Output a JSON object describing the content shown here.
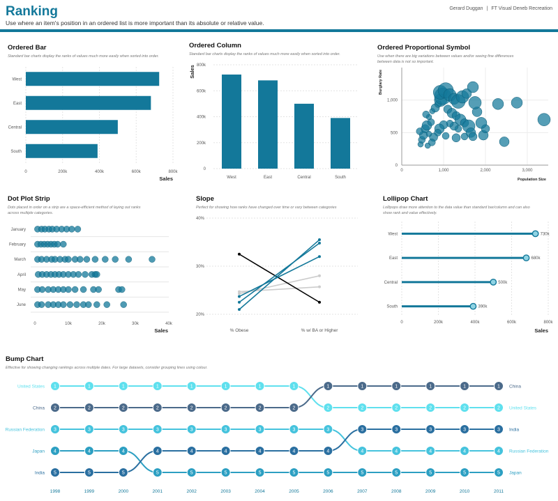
{
  "header": {
    "title": "Ranking",
    "subtitle": "Use where an item's position in an ordered list is more important than its absolute or relative value.",
    "author": "Gerard Duggan",
    "separator": "|",
    "credit": "FT Visual Deneb Recreation"
  },
  "colors": {
    "primary": "#13789a",
    "dark": "#4b6a8a",
    "light": "#5fe0ee",
    "grey": "#cccccc",
    "black": "#000000"
  },
  "chart_data": [
    {
      "id": "ordered-bar",
      "type": "bar",
      "orientation": "horizontal",
      "title": "Ordered Bar",
      "subtitle": "Standard bar charts display the ranks of values much more easily when sorted into order.",
      "categories": [
        "West",
        "East",
        "Central",
        "South"
      ],
      "values": [
        725000,
        680000,
        500000,
        390000
      ],
      "xlabel": "Sales",
      "xlim": [
        0,
        800000
      ],
      "ticks": [
        0,
        200000,
        400000,
        600000,
        800000
      ],
      "tick_labels": [
        "0",
        "200k",
        "400k",
        "600k",
        "800k"
      ]
    },
    {
      "id": "ordered-column",
      "type": "bar",
      "orientation": "vertical",
      "title": "Ordered Column",
      "subtitle": "Standard bar charts display the ranks of values much more easily when sorted into order.",
      "categories": [
        "West",
        "East",
        "Central",
        "South"
      ],
      "values": [
        725000,
        680000,
        500000,
        390000
      ],
      "ylabel": "Sales",
      "ylim": [
        0,
        800000
      ],
      "ticks": [
        0,
        200000,
        400000,
        600000,
        800000
      ],
      "tick_labels": [
        "0",
        "200k",
        "400k",
        "600k",
        "800k"
      ]
    },
    {
      "id": "proportional-symbol",
      "type": "scatter",
      "title": "Ordered Proportional Symbol",
      "subtitle_lines": [
        "Use when there are big variations between values and/or seeing fine differences",
        "between data is not so important."
      ],
      "xlabel": "Population Size",
      "ylabel": "Burglary Rate",
      "xlim": [
        0,
        3500
      ],
      "ylim": [
        0,
        1500
      ],
      "xticks": [
        0,
        1000,
        2000,
        3000
      ],
      "xtick_labels": [
        "0",
        "1,000",
        "2,000",
        "3,000"
      ],
      "yticks": [
        0,
        500,
        1000
      ],
      "ytick_labels": [
        "0",
        "500",
        "1,000"
      ],
      "points": [
        [
          450,
          320,
          4
        ],
        [
          480,
          390,
          5
        ],
        [
          520,
          460,
          6
        ],
        [
          430,
          520,
          5
        ],
        [
          560,
          560,
          6
        ],
        [
          600,
          610,
          7
        ],
        [
          700,
          660,
          5
        ],
        [
          650,
          740,
          4
        ],
        [
          580,
          780,
          5
        ],
        [
          730,
          830,
          4
        ],
        [
          800,
          880,
          6
        ],
        [
          870,
          940,
          5
        ],
        [
          930,
          1000,
          9
        ],
        [
          980,
          1060,
          12
        ],
        [
          920,
          1120,
          10
        ],
        [
          1050,
          1150,
          11
        ],
        [
          1150,
          1080,
          9
        ],
        [
          1250,
          1020,
          8
        ],
        [
          1350,
          980,
          10
        ],
        [
          1450,
          1050,
          9
        ],
        [
          1550,
          1100,
          7
        ],
        [
          1700,
          1200,
          8
        ],
        [
          1100,
          860,
          6
        ],
        [
          1200,
          800,
          7
        ],
        [
          1300,
          760,
          6
        ],
        [
          1400,
          700,
          8
        ],
        [
          1500,
          650,
          6
        ],
        [
          1600,
          600,
          9
        ],
        [
          1650,
          500,
          7
        ],
        [
          1350,
          560,
          5
        ],
        [
          1250,
          600,
          6
        ],
        [
          1150,
          640,
          5
        ],
        [
          1000,
          620,
          6
        ],
        [
          900,
          560,
          7
        ],
        [
          860,
          500,
          5
        ],
        [
          760,
          430,
          6
        ],
        [
          650,
          480,
          4
        ],
        [
          1050,
          450,
          5
        ],
        [
          1300,
          420,
          6
        ],
        [
          1500,
          440,
          5
        ],
        [
          1700,
          440,
          6
        ],
        [
          1950,
          460,
          7
        ],
        [
          2000,
          560,
          6
        ],
        [
          1900,
          650,
          8
        ],
        [
          1800,
          820,
          7
        ],
        [
          1750,
          960,
          9
        ],
        [
          2300,
          940,
          8
        ],
        [
          2750,
          960,
          8
        ],
        [
          3400,
          700,
          9
        ],
        [
          2450,
          360,
          7
        ],
        [
          620,
          300,
          4
        ],
        [
          720,
          350,
          5
        ]
      ]
    },
    {
      "id": "dot-strip",
      "type": "scatter",
      "title": "Dot Plot Strip",
      "subtitle_lines": [
        "Dots placed in order on a strip are a space-efficient method of laying out ranks",
        "across multiple categories."
      ],
      "categories": [
        "January",
        "February",
        "March",
        "April",
        "May",
        "June"
      ],
      "xlabel": "Sales",
      "xlim": [
        0,
        40000
      ],
      "ticks": [
        0,
        10000,
        20000,
        30000,
        40000
      ],
      "tick_labels": [
        "0",
        "10k",
        "20k",
        "30k",
        "40k"
      ],
      "values": [
        [
          800,
          2000,
          3000,
          4200,
          5200,
          6500,
          8000,
          9500,
          11000,
          12800
        ],
        [
          800,
          1800,
          2800,
          3800,
          4800,
          5800,
          6800,
          8500
        ],
        [
          800,
          2000,
          3500,
          5000,
          6000,
          7500,
          9000,
          10000,
          12000,
          13500,
          15500,
          18000,
          21000,
          24000,
          28000,
          35000
        ],
        [
          1000,
          2200,
          3500,
          4800,
          6000,
          7200,
          8500,
          10000,
          11500,
          13000,
          15000,
          17000,
          18000,
          18500
        ],
        [
          800,
          2200,
          4000,
          5500,
          7000,
          8500,
          10000,
          12000,
          14500,
          17500,
          19000,
          25000,
          26000
        ],
        [
          800,
          2000,
          4000,
          5500,
          7000,
          8500,
          10500,
          12500,
          14500,
          16000,
          18500,
          21500,
          26500
        ]
      ]
    },
    {
      "id": "slope",
      "type": "line",
      "title": "Slope",
      "subtitle": "Perfect for showing how ranks have changed over time or vary between categories",
      "categories": [
        "% Obese",
        "% w/ BA or Higher"
      ],
      "ylim": [
        0.2,
        0.4
      ],
      "ticks": [
        0.2,
        0.3,
        0.4
      ],
      "tick_labels": [
        "20%",
        "30%",
        "40%"
      ],
      "series": [
        {
          "name": "black",
          "values": [
            0.325,
            0.225
          ],
          "color": "#000000"
        },
        {
          "name": "blue1",
          "values": [
            0.21,
            0.355
          ],
          "color": "#13789a"
        },
        {
          "name": "blue2",
          "values": [
            0.225,
            0.348
          ],
          "color": "#13789a"
        },
        {
          "name": "blue3",
          "values": [
            0.237,
            0.32
          ],
          "color": "#13789a"
        },
        {
          "name": "grey1",
          "values": [
            0.243,
            0.28
          ],
          "color": "#cccccc"
        },
        {
          "name": "grey2",
          "values": [
            0.247,
            0.257
          ],
          "color": "#cccccc"
        }
      ]
    },
    {
      "id": "lollipop",
      "type": "bar",
      "orientation": "horizontal",
      "title": "Lollipop Chart",
      "subtitle_lines": [
        "Lollipops draw more attention to the data value than standard bar/column and can also",
        "show rank and value effectively."
      ],
      "categories": [
        "West",
        "East",
        "Central",
        "South"
      ],
      "values": [
        730000,
        680000,
        500000,
        390000
      ],
      "value_labels": [
        "730k",
        "680k",
        "500k",
        "390k"
      ],
      "xlabel": "Sales",
      "xlim": [
        0,
        800000
      ],
      "ticks": [
        0,
        200000,
        400000,
        600000,
        800000
      ],
      "tick_labels": [
        "0",
        "200k",
        "400k",
        "600k",
        "800k"
      ]
    },
    {
      "id": "bump",
      "type": "line",
      "title": "Bump Chart",
      "subtitle": "Effective for showing changing rankings across multiple dates. For large datasets, consider grouping lines using colour.",
      "x": [
        "1998",
        "1999",
        "2000",
        "2001",
        "2002",
        "2003",
        "2004",
        "2005",
        "2006",
        "2007",
        "2008",
        "2009",
        "2010",
        "2011"
      ],
      "series": [
        {
          "name": "United States",
          "ranks": [
            1,
            1,
            1,
            1,
            1,
            1,
            1,
            1,
            2,
            2,
            2,
            2,
            2,
            2
          ],
          "color": "#5fe0ee"
        },
        {
          "name": "China",
          "ranks": [
            2,
            2,
            2,
            2,
            2,
            2,
            2,
            2,
            1,
            1,
            1,
            1,
            1,
            1
          ],
          "color": "#4b6a8a"
        },
        {
          "name": "Russian Federation",
          "ranks": [
            3,
            3,
            3,
            3,
            3,
            3,
            3,
            3,
            3,
            4,
            4,
            4,
            4,
            4
          ],
          "color": "#45c3dd"
        },
        {
          "name": "Japan",
          "ranks": [
            4,
            4,
            4,
            5,
            5,
            5,
            5,
            5,
            5,
            5,
            5,
            5,
            5,
            5
          ],
          "color": "#2c9fc2"
        },
        {
          "name": "India",
          "ranks": [
            5,
            5,
            5,
            4,
            4,
            4,
            4,
            4,
            4,
            3,
            3,
            3,
            3,
            3
          ],
          "color": "#2a6fa0"
        }
      ]
    }
  ]
}
